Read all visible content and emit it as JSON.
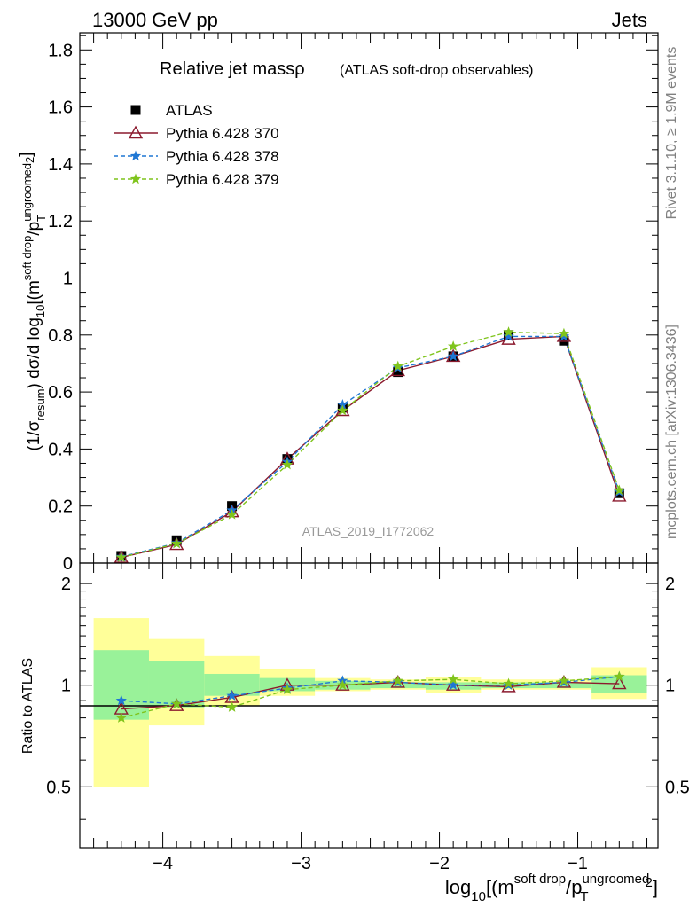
{
  "header": {
    "left": "13000 GeV pp",
    "right": "Jets"
  },
  "side_labels": {
    "rivet": "Rivet 3.1.10, ≥ 1.9M events",
    "mcplots": "mcplots.cern.ch [arXiv:1306.3436]"
  },
  "analysis_id": "ATLAS_2019_I1772062",
  "colors": {
    "data": "#000000",
    "pythia370": "#8b1a2e",
    "pythia378": "#1f77d4",
    "pythia379": "#7fc41c",
    "band_inner": "#99f299",
    "band_outer": "#ffff99"
  },
  "chart_data": [
    {
      "type": "line",
      "title": "Relative jet massρ",
      "subtitle": "(ATLAS soft-drop observables)",
      "ylabel": "(1/σresum) dσ/d log10[(m soft drop/pT ungroomed)2]",
      "xlabel": "log10[(m soft drop/pT ungroomed)2]",
      "xlim": [
        -4.6,
        -0.42
      ],
      "ylim": [
        0,
        1.86
      ],
      "yticks": [
        0,
        0.2,
        0.4,
        0.6,
        0.8,
        1,
        1.2,
        1.4,
        1.6,
        1.8
      ],
      "ytick_labels": [
        "0",
        "0.2",
        "0.4",
        "0.6",
        "0.8",
        "1",
        "1.2",
        "1.4",
        "1.6",
        "1.8"
      ],
      "legend_position": "top-left",
      "x": [
        -4.3,
        -3.9,
        -3.5,
        -3.1,
        -2.7,
        -2.3,
        -1.9,
        -1.5,
        -1.1,
        -0.7
      ],
      "series": [
        {
          "name": "ATLAS",
          "marker": "square",
          "values": [
            0.025,
            0.08,
            0.2,
            0.365,
            0.545,
            0.67,
            0.725,
            0.8,
            0.78,
            0.245
          ]
        },
        {
          "name": "Pythia 6.428 370",
          "marker": "triangle",
          "values": [
            0.02,
            0.065,
            0.18,
            0.365,
            0.535,
            0.675,
            0.725,
            0.785,
            0.795,
            0.235
          ]
        },
        {
          "name": "Pythia 6.428 378",
          "marker": "star",
          "dashed": true,
          "values": [
            0.022,
            0.07,
            0.185,
            0.355,
            0.555,
            0.685,
            0.725,
            0.795,
            0.795,
            0.25
          ]
        },
        {
          "name": "Pythia 6.428 379",
          "marker": "star",
          "dashed": true,
          "values": [
            0.02,
            0.068,
            0.17,
            0.345,
            0.535,
            0.69,
            0.76,
            0.81,
            0.805,
            0.255
          ]
        }
      ]
    },
    {
      "type": "line",
      "ylabel": "Ratio to ATLAS",
      "xlabel": "log10[(m soft drop/pT ungroomed)2]",
      "xlim": [
        -4.6,
        -0.42
      ],
      "ylim": [
        0.33,
        2.3
      ],
      "log_y": true,
      "yticks": [
        0.5,
        1,
        2
      ],
      "ytick_labels": [
        "0.5",
        "1",
        "2"
      ],
      "xticks": [
        -4,
        -3,
        -2,
        -1
      ],
      "xtick_labels": [
        "−4",
        "−3",
        "−2",
        "−1"
      ],
      "bins": [
        [
          -4.5,
          -4.1
        ],
        [
          -4.1,
          -3.7
        ],
        [
          -3.7,
          -3.3
        ],
        [
          -3.3,
          -2.9
        ],
        [
          -2.9,
          -2.5
        ],
        [
          -2.5,
          -2.1
        ],
        [
          -2.1,
          -1.7
        ],
        [
          -1.7,
          -1.3
        ],
        [
          -1.3,
          -0.9
        ],
        [
          -0.9,
          -0.5
        ]
      ],
      "band_inner": [
        [
          0.79,
          1.27
        ],
        [
          0.86,
          1.18
        ],
        [
          0.93,
          1.08
        ],
        [
          0.96,
          1.05
        ],
        [
          0.97,
          1.03
        ],
        [
          0.98,
          1.02
        ],
        [
          0.97,
          1.02
        ],
        [
          0.98,
          1.02
        ],
        [
          0.98,
          1.02
        ],
        [
          0.95,
          1.07
        ]
      ],
      "band_outer": [
        [
          0.5,
          1.58
        ],
        [
          0.76,
          1.37
        ],
        [
          0.87,
          1.22
        ],
        [
          0.93,
          1.12
        ],
        [
          0.96,
          1.05
        ],
        [
          0.97,
          1.04
        ],
        [
          0.95,
          1.06
        ],
        [
          0.97,
          1.04
        ],
        [
          0.97,
          1.04
        ],
        [
          0.91,
          1.13
        ]
      ],
      "x": [
        -4.3,
        -3.9,
        -3.5,
        -3.1,
        -2.7,
        -2.3,
        -1.9,
        -1.5,
        -1.1,
        -0.7
      ],
      "series": [
        {
          "name": "Pythia 6.428 370",
          "marker": "triangle",
          "values": [
            0.85,
            0.87,
            0.92,
            1.0,
            1.0,
            1.02,
            1.0,
            0.99,
            1.02,
            1.01
          ]
        },
        {
          "name": "Pythia 6.428 378",
          "marker": "star",
          "dashed": true,
          "values": [
            0.9,
            0.88,
            0.93,
            0.98,
            1.03,
            1.02,
            1.0,
            1.0,
            1.02,
            1.06
          ]
        },
        {
          "name": "Pythia 6.428 379",
          "marker": "star",
          "dashed": true,
          "values": [
            0.8,
            0.88,
            0.86,
            0.97,
            1.0,
            1.03,
            1.04,
            1.01,
            1.03,
            1.06
          ]
        }
      ]
    }
  ]
}
